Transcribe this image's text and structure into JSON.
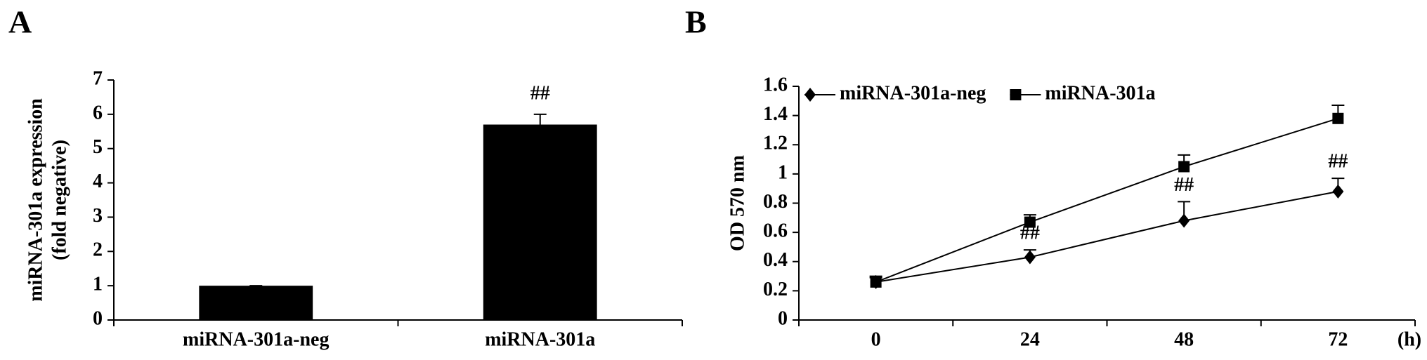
{
  "chart_data": [
    {
      "type": "bar",
      "panel_label": "A",
      "ylabel": [
        "miRNA-301a expression",
        "(fold negative)"
      ],
      "categories": [
        "miRNA-301a-neg",
        "miRNA-301a"
      ],
      "values": [
        1,
        5.7
      ],
      "errors": [
        0,
        0.3
      ],
      "value_annotations": [
        null,
        "##"
      ],
      "color": "#000000",
      "ylim": [
        0,
        7
      ],
      "yticks": [
        0,
        1,
        2,
        3,
        4,
        5,
        6,
        7
      ]
    },
    {
      "type": "line",
      "panel_label": "B",
      "ylabel": [
        "OD 570 nm"
      ],
      "xlabel": "(h)",
      "categories": [
        "0",
        "24",
        "48",
        "72"
      ],
      "series": [
        {
          "name": "miRNA-301a-neg",
          "color": "#000000",
          "marker": "diamond",
          "values": [
            0.26,
            0.43,
            0.68,
            0.88
          ],
          "errors": [
            0.03,
            0.05,
            0.13,
            0.09
          ],
          "value_annotations": [
            null,
            "##",
            "##",
            "##"
          ]
        },
        {
          "name": "miRNA-301a",
          "color": "#000000",
          "marker": "square",
          "values": [
            0.26,
            0.67,
            1.05,
            1.38
          ],
          "errors": [
            0.04,
            0.05,
            0.08,
            0.09
          ]
        }
      ],
      "legend": "top-left",
      "ylim": [
        0,
        1.6
      ],
      "yticks": [
        0,
        0.2,
        0.4,
        0.6,
        0.8,
        1,
        1.2,
        1.4,
        1.6
      ]
    }
  ]
}
